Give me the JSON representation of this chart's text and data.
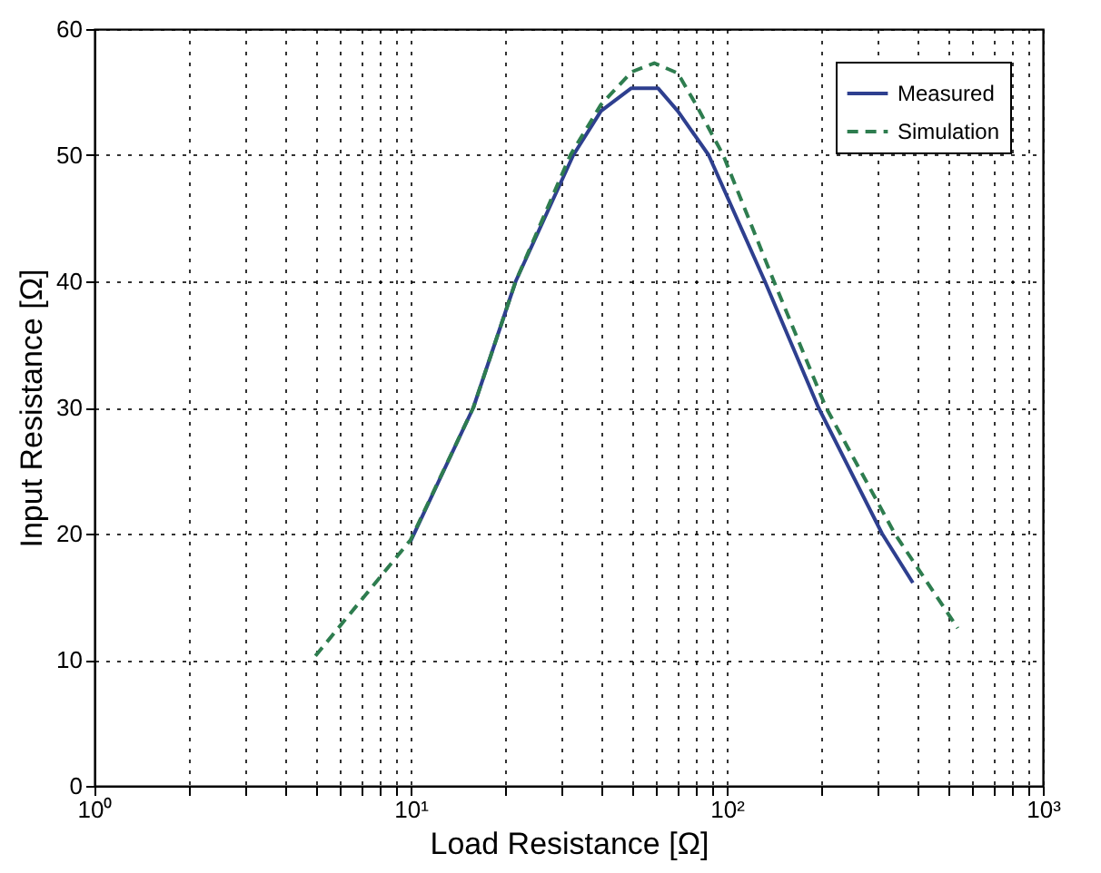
{
  "chart_data": {
    "type": "line",
    "xlabel": "Load Resistance [Ω]",
    "ylabel": "Input Resistance [Ω]",
    "log": "x",
    "xlim": [
      1,
      1000
    ],
    "xticks": [
      {
        "value": 1,
        "label": "10⁰"
      },
      {
        "value": 2,
        "label": null
      },
      {
        "value": 3,
        "label": null
      },
      {
        "value": 4,
        "label": null
      },
      {
        "value": 5,
        "label": null
      },
      {
        "value": 6,
        "label": null
      },
      {
        "value": 7,
        "label": null
      },
      {
        "value": 8,
        "label": null
      },
      {
        "value": 9,
        "label": null
      },
      {
        "value": 10,
        "label": "10¹"
      },
      {
        "value": 20,
        "label": null
      },
      {
        "value": 30,
        "label": null
      },
      {
        "value": 40,
        "label": null
      },
      {
        "value": 50,
        "label": null
      },
      {
        "value": 60,
        "label": null
      },
      {
        "value": 70,
        "label": null
      },
      {
        "value": 80,
        "label": null
      },
      {
        "value": 90,
        "label": null
      },
      {
        "value": 100,
        "label": "10²"
      },
      {
        "value": 200,
        "label": null
      },
      {
        "value": 300,
        "label": null
      },
      {
        "value": 400,
        "label": null
      },
      {
        "value": 500,
        "label": null
      },
      {
        "value": 600,
        "label": null
      },
      {
        "value": 700,
        "label": null
      },
      {
        "value": 800,
        "label": null
      },
      {
        "value": 900,
        "label": null
      },
      {
        "value": 1000,
        "label": "10³"
      }
    ],
    "ylim": [
      0,
      60
    ],
    "yticks": [
      0,
      10,
      20,
      30,
      40,
      50,
      60
    ],
    "grid": true,
    "legend": "top right",
    "series": [
      {
        "name": "Measured",
        "color": "#2e3f8f",
        "line_style": "solid",
        "x": [
          10,
          15.8,
          21.5,
          32.7,
          40,
          49.8,
          60.7,
          70,
          87.7,
          132,
          195,
          310,
          388
        ],
        "values": [
          19.4,
          30,
          40,
          50,
          53.5,
          55.3,
          55.3,
          53.5,
          50,
          40,
          30,
          20,
          16.1
        ]
      },
      {
        "name": "Simulation",
        "color": "#2e7d4f",
        "line_style": "dashed",
        "x": [
          5,
          10,
          15.8,
          21.5,
          32,
          40,
          50,
          59,
          70,
          80,
          97.5,
          141,
          206,
          340,
          538
        ],
        "values": [
          10.3,
          19.5,
          30,
          40,
          50,
          54,
          56.6,
          57.3,
          56.5,
          54,
          50,
          40,
          30,
          20,
          12.5
        ]
      }
    ]
  }
}
